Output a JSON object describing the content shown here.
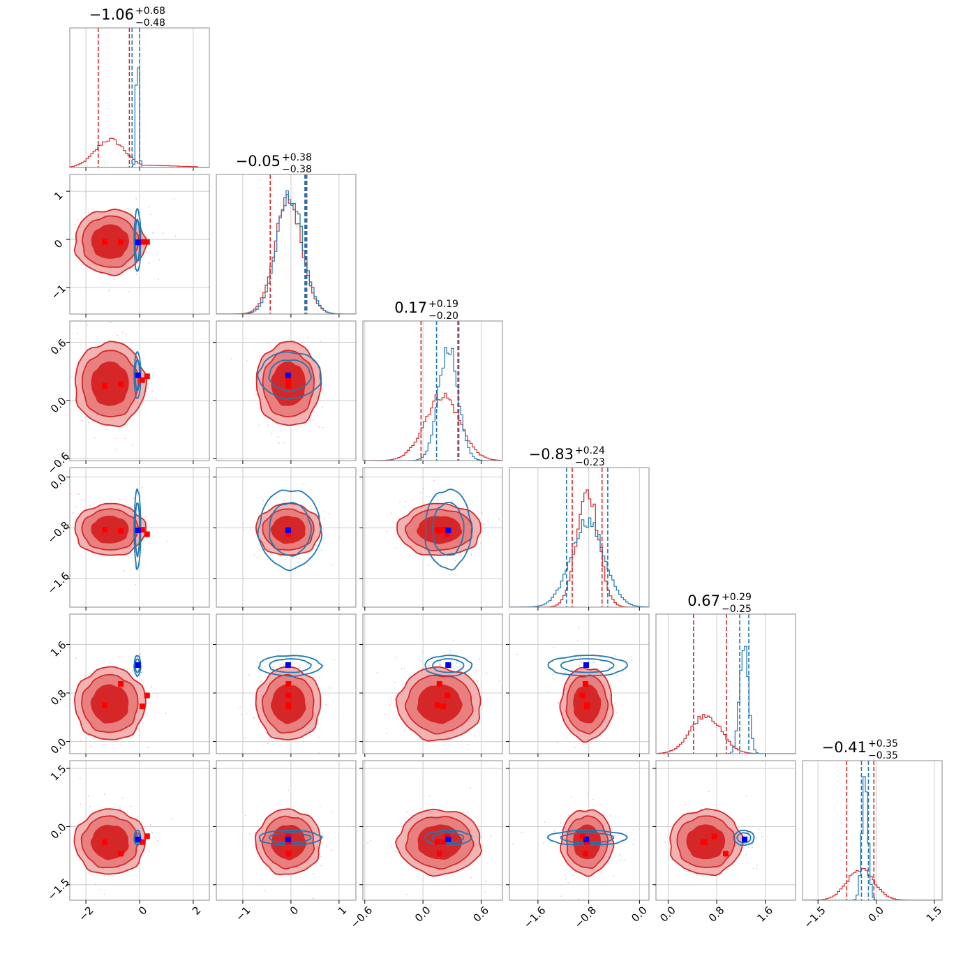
{
  "chart_data": {
    "type": "corner",
    "colors": {
      "red": "#d62728",
      "blue": "#1f77b4",
      "red_fill_outer": "#f2b3b3",
      "red_fill_inner": "#e88080",
      "red_fill_core": "#d62728",
      "marker_red": "#ff0000",
      "marker_blue": "#0000ff",
      "grid": "#cccccc",
      "frame": "#888888"
    },
    "grid": true,
    "params": [
      {
        "range": [
          -2.6,
          2.6
        ],
        "ticks": [
          -2,
          0,
          2
        ],
        "tick_labels": [
          "−2",
          "0",
          "2"
        ],
        "title": {
          "median": "−1.06",
          "plus": "+0.68",
          "minus": "−0.48"
        },
        "red_quantiles": [
          -1.54,
          -0.38
        ],
        "blue_quantiles": [
          -0.28,
          0.0
        ],
        "red_hist": {
          "center": -1.1,
          "sigma": 0.55,
          "peak": 0.2,
          "tail_to": 2.2
        },
        "blue_hist": {
          "center": -0.08,
          "sigma": 0.05,
          "peak": 0.95
        }
      },
      {
        "range": [
          -1.55,
          1.35
        ],
        "ticks": [
          -1,
          0,
          1
        ],
        "tick_labels": [
          "−1",
          "0",
          "1"
        ],
        "title": {
          "median": "−0.05",
          "plus": "+0.38",
          "minus": "−0.38"
        },
        "red_quantiles": [
          -0.43,
          0.31
        ],
        "blue_quantiles": [
          0.29,
          0.33
        ],
        "red_hist": {
          "center": -0.05,
          "sigma": 0.28,
          "peak": 0.82
        },
        "blue_hist": {
          "center": -0.02,
          "sigma": 0.27,
          "peak": 0.85
        }
      },
      {
        "range": [
          -0.62,
          0.82
        ],
        "ticks": [
          -0.6,
          0.0,
          0.6
        ],
        "tick_labels": [
          "−0.6",
          "0.0",
          "0.6"
        ],
        "title": {
          "median": "0.17",
          "plus": "+0.19",
          "minus": "−0.20"
        },
        "red_quantiles": [
          -0.02,
          0.37
        ],
        "blue_quantiles": [
          0.14,
          0.36
        ],
        "red_hist": {
          "center": 0.2,
          "sigma": 0.18,
          "peak": 0.47
        },
        "blue_hist": {
          "center": 0.26,
          "sigma": 0.1,
          "peak": 0.82
        }
      },
      {
        "range": [
          -2.05,
          0.15
        ],
        "ticks": [
          -1.6,
          -0.8,
          0.0
        ],
        "tick_labels": [
          "−1.6",
          "−0.8",
          "0.0"
        ],
        "title": {
          "median": "−0.83",
          "plus": "+0.24",
          "minus": "−0.23"
        },
        "red_quantiles": [
          -1.06,
          -0.59
        ],
        "blue_quantiles": [
          -1.15,
          -0.5
        ],
        "red_hist": {
          "center": -0.82,
          "sigma": 0.17,
          "peak": 0.85
        },
        "blue_hist": {
          "center": -0.82,
          "sigma": 0.26,
          "peak": 0.62
        }
      },
      {
        "range": [
          -0.2,
          2.1
        ],
        "ticks": [
          0.0,
          0.8,
          1.6
        ],
        "tick_labels": [
          "0.0",
          "0.8",
          "1.6"
        ],
        "title": {
          "median": "0.67",
          "plus": "+0.29",
          "minus": "−0.25"
        },
        "red_quantiles": [
          0.42,
          0.96
        ],
        "blue_quantiles": [
          1.18,
          1.33
        ],
        "red_hist": {
          "center": 0.62,
          "sigma": 0.25,
          "peak": 0.28
        },
        "blue_hist": {
          "center": 1.25,
          "sigma": 0.07,
          "peak": 0.8
        }
      },
      {
        "range": [
          -1.9,
          1.7
        ],
        "ticks": [
          -1.5,
          0.0,
          1.5
        ],
        "tick_labels": [
          "−1.5",
          "0.0",
          "1.5"
        ],
        "title": {
          "median": "−0.41",
          "plus": "+0.35",
          "minus": "−0.35"
        },
        "red_quantiles": [
          -0.76,
          -0.06
        ],
        "blue_quantiles": [
          -0.38,
          -0.2
        ],
        "red_hist": {
          "center": -0.4,
          "sigma": 0.35,
          "peak": 0.22
        },
        "blue_hist": {
          "center": -0.29,
          "sigma": 0.08,
          "peak": 0.85
        }
      }
    ],
    "red_centers": [
      -1.1,
      -0.05,
      0.17,
      -0.83,
      0.62,
      -0.4
    ],
    "red_sigmas": [
      0.55,
      0.28,
      0.18,
      0.17,
      0.25,
      0.35
    ],
    "blue_centers": [
      -0.08,
      -0.02,
      0.26,
      -0.82,
      1.25,
      -0.29
    ],
    "blue_sigmas": [
      0.05,
      0.27,
      0.1,
      0.26,
      0.07,
      0.08
    ],
    "red_markers": [
      [
        -1.3,
        -0.05,
        0.15,
        -0.83,
        0.6,
        -0.4
      ],
      [
        -0.7,
        -0.05,
        0.17,
        -0.85,
        0.95,
        -0.7
      ],
      [
        0.1,
        -0.05,
        0.21,
        -0.83,
        0.58,
        -0.4
      ],
      [
        0.28,
        -0.05,
        0.25,
        -0.9,
        0.76,
        -0.25
      ]
    ],
    "blue_marker": [
      -0.06,
      -0.06,
      0.26,
      -0.84,
      1.26,
      -0.33
    ]
  }
}
